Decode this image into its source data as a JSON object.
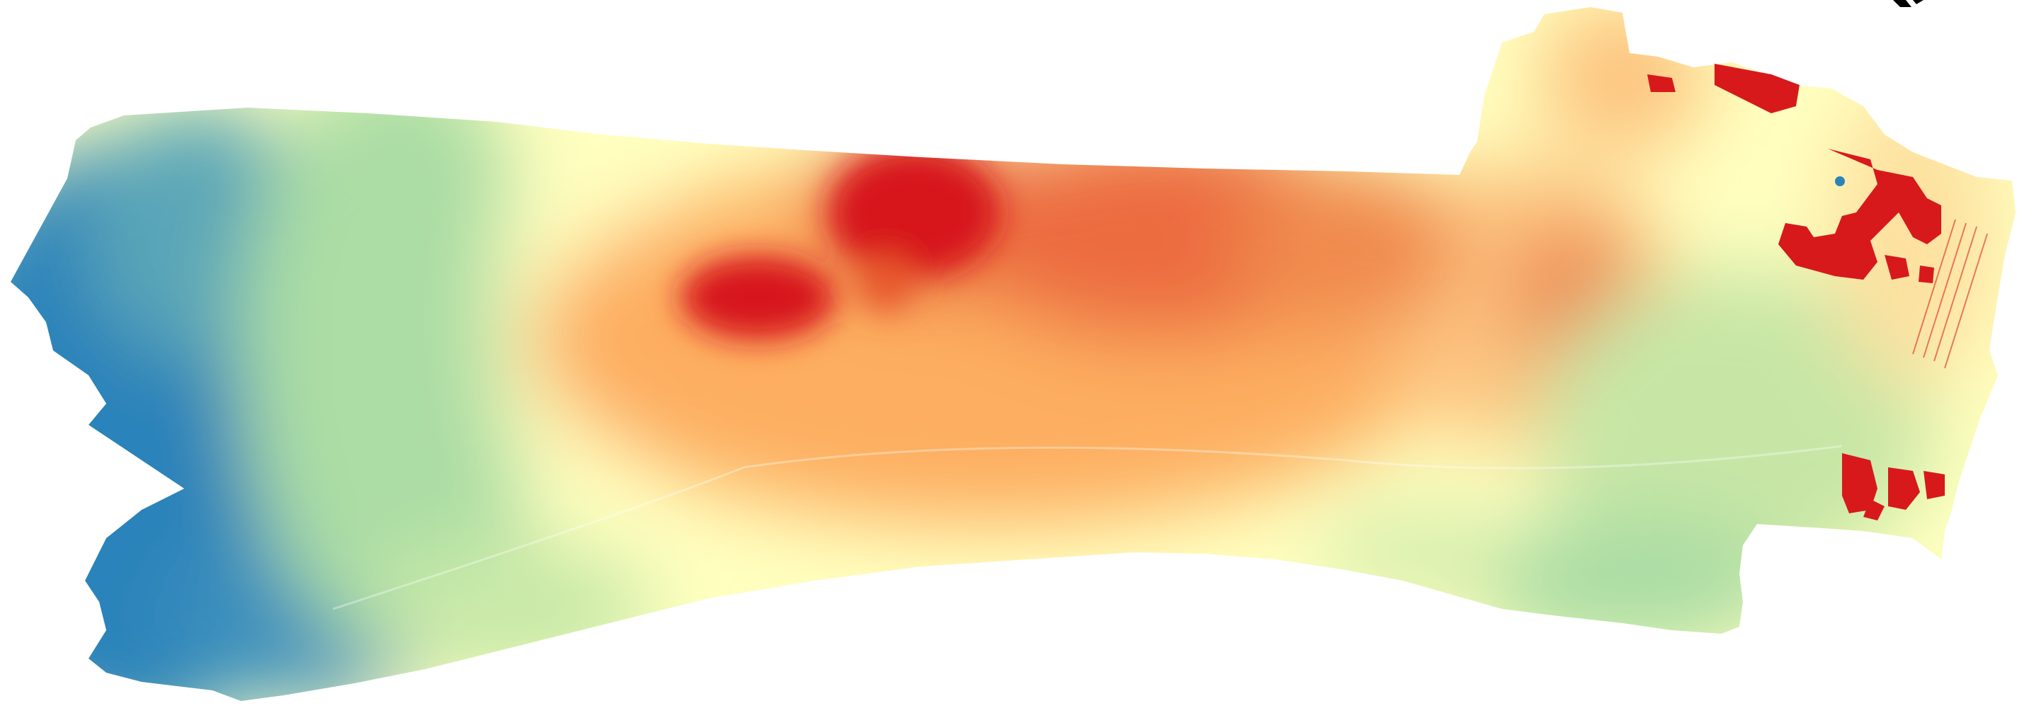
{
  "map": {
    "type": "elevation-heatmap",
    "colormap": "Spectral",
    "colors": {
      "low": "#2b83ba",
      "mid_low": "#abdda4",
      "mid": "#ffffbf",
      "mid_high": "#fdae61",
      "high": "#d7191c",
      "background": "#ffffff"
    },
    "legend": "none",
    "labels": "none",
    "icon": "north-arrow-icon"
  }
}
